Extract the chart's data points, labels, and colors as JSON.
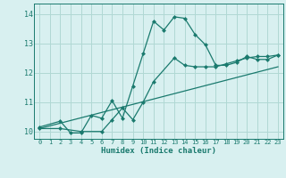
{
  "xlabel": "Humidex (Indice chaleur)",
  "bg_color": "#d8f0f0",
  "grid_color": "#b0d8d4",
  "line_color": "#1a7a6e",
  "xlim": [
    -0.5,
    23.5
  ],
  "ylim": [
    9.75,
    14.35
  ],
  "xticks": [
    0,
    1,
    2,
    3,
    4,
    5,
    6,
    7,
    8,
    9,
    10,
    11,
    12,
    13,
    14,
    15,
    16,
    17,
    18,
    19,
    20,
    21,
    22,
    23
  ],
  "yticks": [
    10,
    11,
    12,
    13,
    14
  ],
  "curve1_x": [
    0,
    2,
    3,
    4,
    5,
    6,
    7,
    8,
    9,
    10,
    11,
    12,
    13,
    14,
    15,
    16,
    17,
    18,
    19,
    20,
    21,
    22,
    23
  ],
  "curve1_y": [
    10.15,
    10.35,
    9.95,
    9.95,
    10.55,
    10.45,
    11.05,
    10.45,
    11.55,
    12.65,
    13.75,
    13.45,
    13.9,
    13.85,
    13.3,
    12.95,
    12.25,
    12.25,
    12.35,
    12.55,
    12.45,
    12.45,
    12.6
  ],
  "curve2_x": [
    0,
    2,
    4,
    6,
    7,
    8,
    9,
    10,
    11,
    13,
    14,
    15,
    16,
    17,
    18,
    19,
    20,
    21,
    22,
    23
  ],
  "curve2_y": [
    10.1,
    10.1,
    10.0,
    10.0,
    10.4,
    10.8,
    10.4,
    11.0,
    11.7,
    12.5,
    12.25,
    12.2,
    12.2,
    12.2,
    12.3,
    12.4,
    12.5,
    12.55,
    12.55,
    12.6
  ],
  "curve3_x": [
    0,
    23
  ],
  "curve3_y": [
    10.1,
    12.2
  ]
}
